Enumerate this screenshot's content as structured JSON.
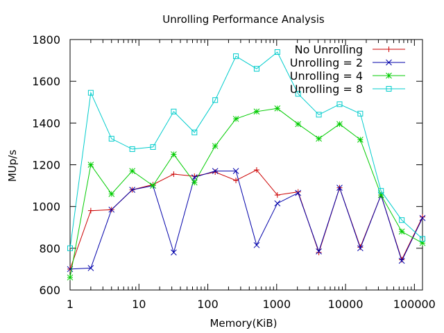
{
  "chart_data": {
    "type": "line",
    "title": "Unrolling Performance Analysis",
    "xlabel": "Memory(KiB)",
    "ylabel": "MUp/s",
    "xscale": "log",
    "xlim": [
      1,
      131072
    ],
    "ylim": [
      600,
      1800
    ],
    "x_ticks": [
      {
        "value": 1,
        "label": "1"
      },
      {
        "value": 10,
        "label": "10"
      },
      {
        "value": 100,
        "label": "100"
      },
      {
        "value": 1000,
        "label": "1000"
      },
      {
        "value": 10000,
        "label": "10000"
      },
      {
        "value": 100000,
        "label": "100000"
      }
    ],
    "y_ticks": [
      {
        "value": 600,
        "label": "600"
      },
      {
        "value": 800,
        "label": "800"
      },
      {
        "value": 1000,
        "label": "1000"
      },
      {
        "value": 1200,
        "label": "1200"
      },
      {
        "value": 1400,
        "label": "1400"
      },
      {
        "value": 1600,
        "label": "1600"
      },
      {
        "value": 1800,
        "label": "1800"
      }
    ],
    "grid": false,
    "legend_position": "top-right",
    "x": [
      1,
      2,
      4,
      8,
      16,
      32,
      64,
      128,
      256,
      512,
      1024,
      2048,
      4096,
      8192,
      16384,
      32768,
      65536,
      131072
    ],
    "series": [
      {
        "name": "No Unrolling",
        "color": "#cc0000",
        "marker": "plus",
        "values": [
          700,
          980,
          985,
          1080,
          1105,
          1155,
          1145,
          1165,
          1125,
          1175,
          1055,
          1070,
          780,
          1090,
          805,
          1055,
          745,
          950
        ]
      },
      {
        "name": "Unrolling = 2",
        "color": "#0000aa",
        "marker": "x",
        "values": [
          700,
          705,
          985,
          1080,
          1100,
          780,
          1140,
          1170,
          1170,
          815,
          1015,
          1065,
          785,
          1090,
          800,
          1055,
          740,
          945
        ]
      },
      {
        "name": "Unrolling = 4",
        "color": "#00cc00",
        "marker": "star",
        "values": [
          660,
          1200,
          1060,
          1170,
          1100,
          1250,
          1115,
          1290,
          1420,
          1455,
          1470,
          1395,
          1325,
          1395,
          1320,
          1055,
          880,
          825
        ]
      },
      {
        "name": "Unrolling = 8",
        "color": "#00cccc",
        "marker": "square",
        "values": [
          800,
          1545,
          1325,
          1275,
          1285,
          1455,
          1355,
          1510,
          1720,
          1660,
          1740,
          1540,
          1440,
          1490,
          1445,
          1075,
          935,
          845
        ]
      }
    ]
  }
}
